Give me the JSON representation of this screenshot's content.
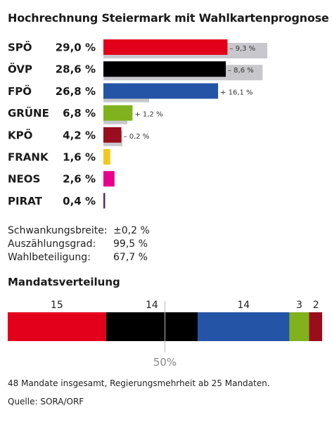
{
  "chart_data": [
    {
      "type": "bar",
      "title": "Hochrechnung Steiermark mit Wahlkartenprognose",
      "unit": "%",
      "categories": [
        "SPÖ",
        "ÖVP",
        "FPÖ",
        "GRÜNE",
        "KPÖ",
        "FRANK",
        "NEOS",
        "PIRAT"
      ],
      "series": [
        {
          "values": [
            29.0,
            28.6,
            26.8,
            6.8,
            4.2,
            1.6,
            2.6,
            0.4
          ]
        },
        {
          "values": [
            38.3,
            37.2,
            10.7,
            5.6,
            4.4,
            null,
            null,
            null
          ]
        }
      ],
      "value_labels": [
        "29,0 %",
        "28,6 %",
        "26,8 %",
        "6,8 %",
        "4,2 %",
        "1,6 %",
        "2,6 %",
        "0,4 %"
      ],
      "diff_labels": [
        "– 9,3 %",
        "– 8,6 %",
        "+ 16,1 %",
        "+ 1,2 %",
        "– 0,2 %",
        "",
        "",
        ""
      ],
      "colors": [
        "#e3001b",
        "#000000",
        "#2354a6",
        "#7fb21c",
        "#9a0d1c",
        "#f2c81f",
        "#e6008c",
        "#4b2a6e"
      ],
      "shadow_color": "#c8c8cc",
      "xlim": [
        0,
        38.3
      ]
    },
    {
      "type": "bar",
      "title": "Mandatsverteilung",
      "categories": [
        "SPÖ",
        "ÖVP",
        "FPÖ",
        "GRÜNE",
        "KPÖ"
      ],
      "values": [
        15,
        14,
        14,
        3,
        2
      ],
      "colors": [
        "#e3001b",
        "#000000",
        "#2354a6",
        "#7fb21c",
        "#9a0d1c"
      ],
      "total": 48,
      "midline_label": "50%"
    }
  ],
  "stats": [
    {
      "label": "Schwankungsbreite:",
      "value": "±0,2 %"
    },
    {
      "label": "Auszählungsgrad:",
      "value": "99,5 %"
    },
    {
      "label": "Wahlbeteiligung:",
      "value": "67,7 %"
    }
  ],
  "footnote": "48 Mandate insgesamt, Regierungsmehrheit ab 25 Mandaten.",
  "source": "Quelle: SORA/ORF"
}
